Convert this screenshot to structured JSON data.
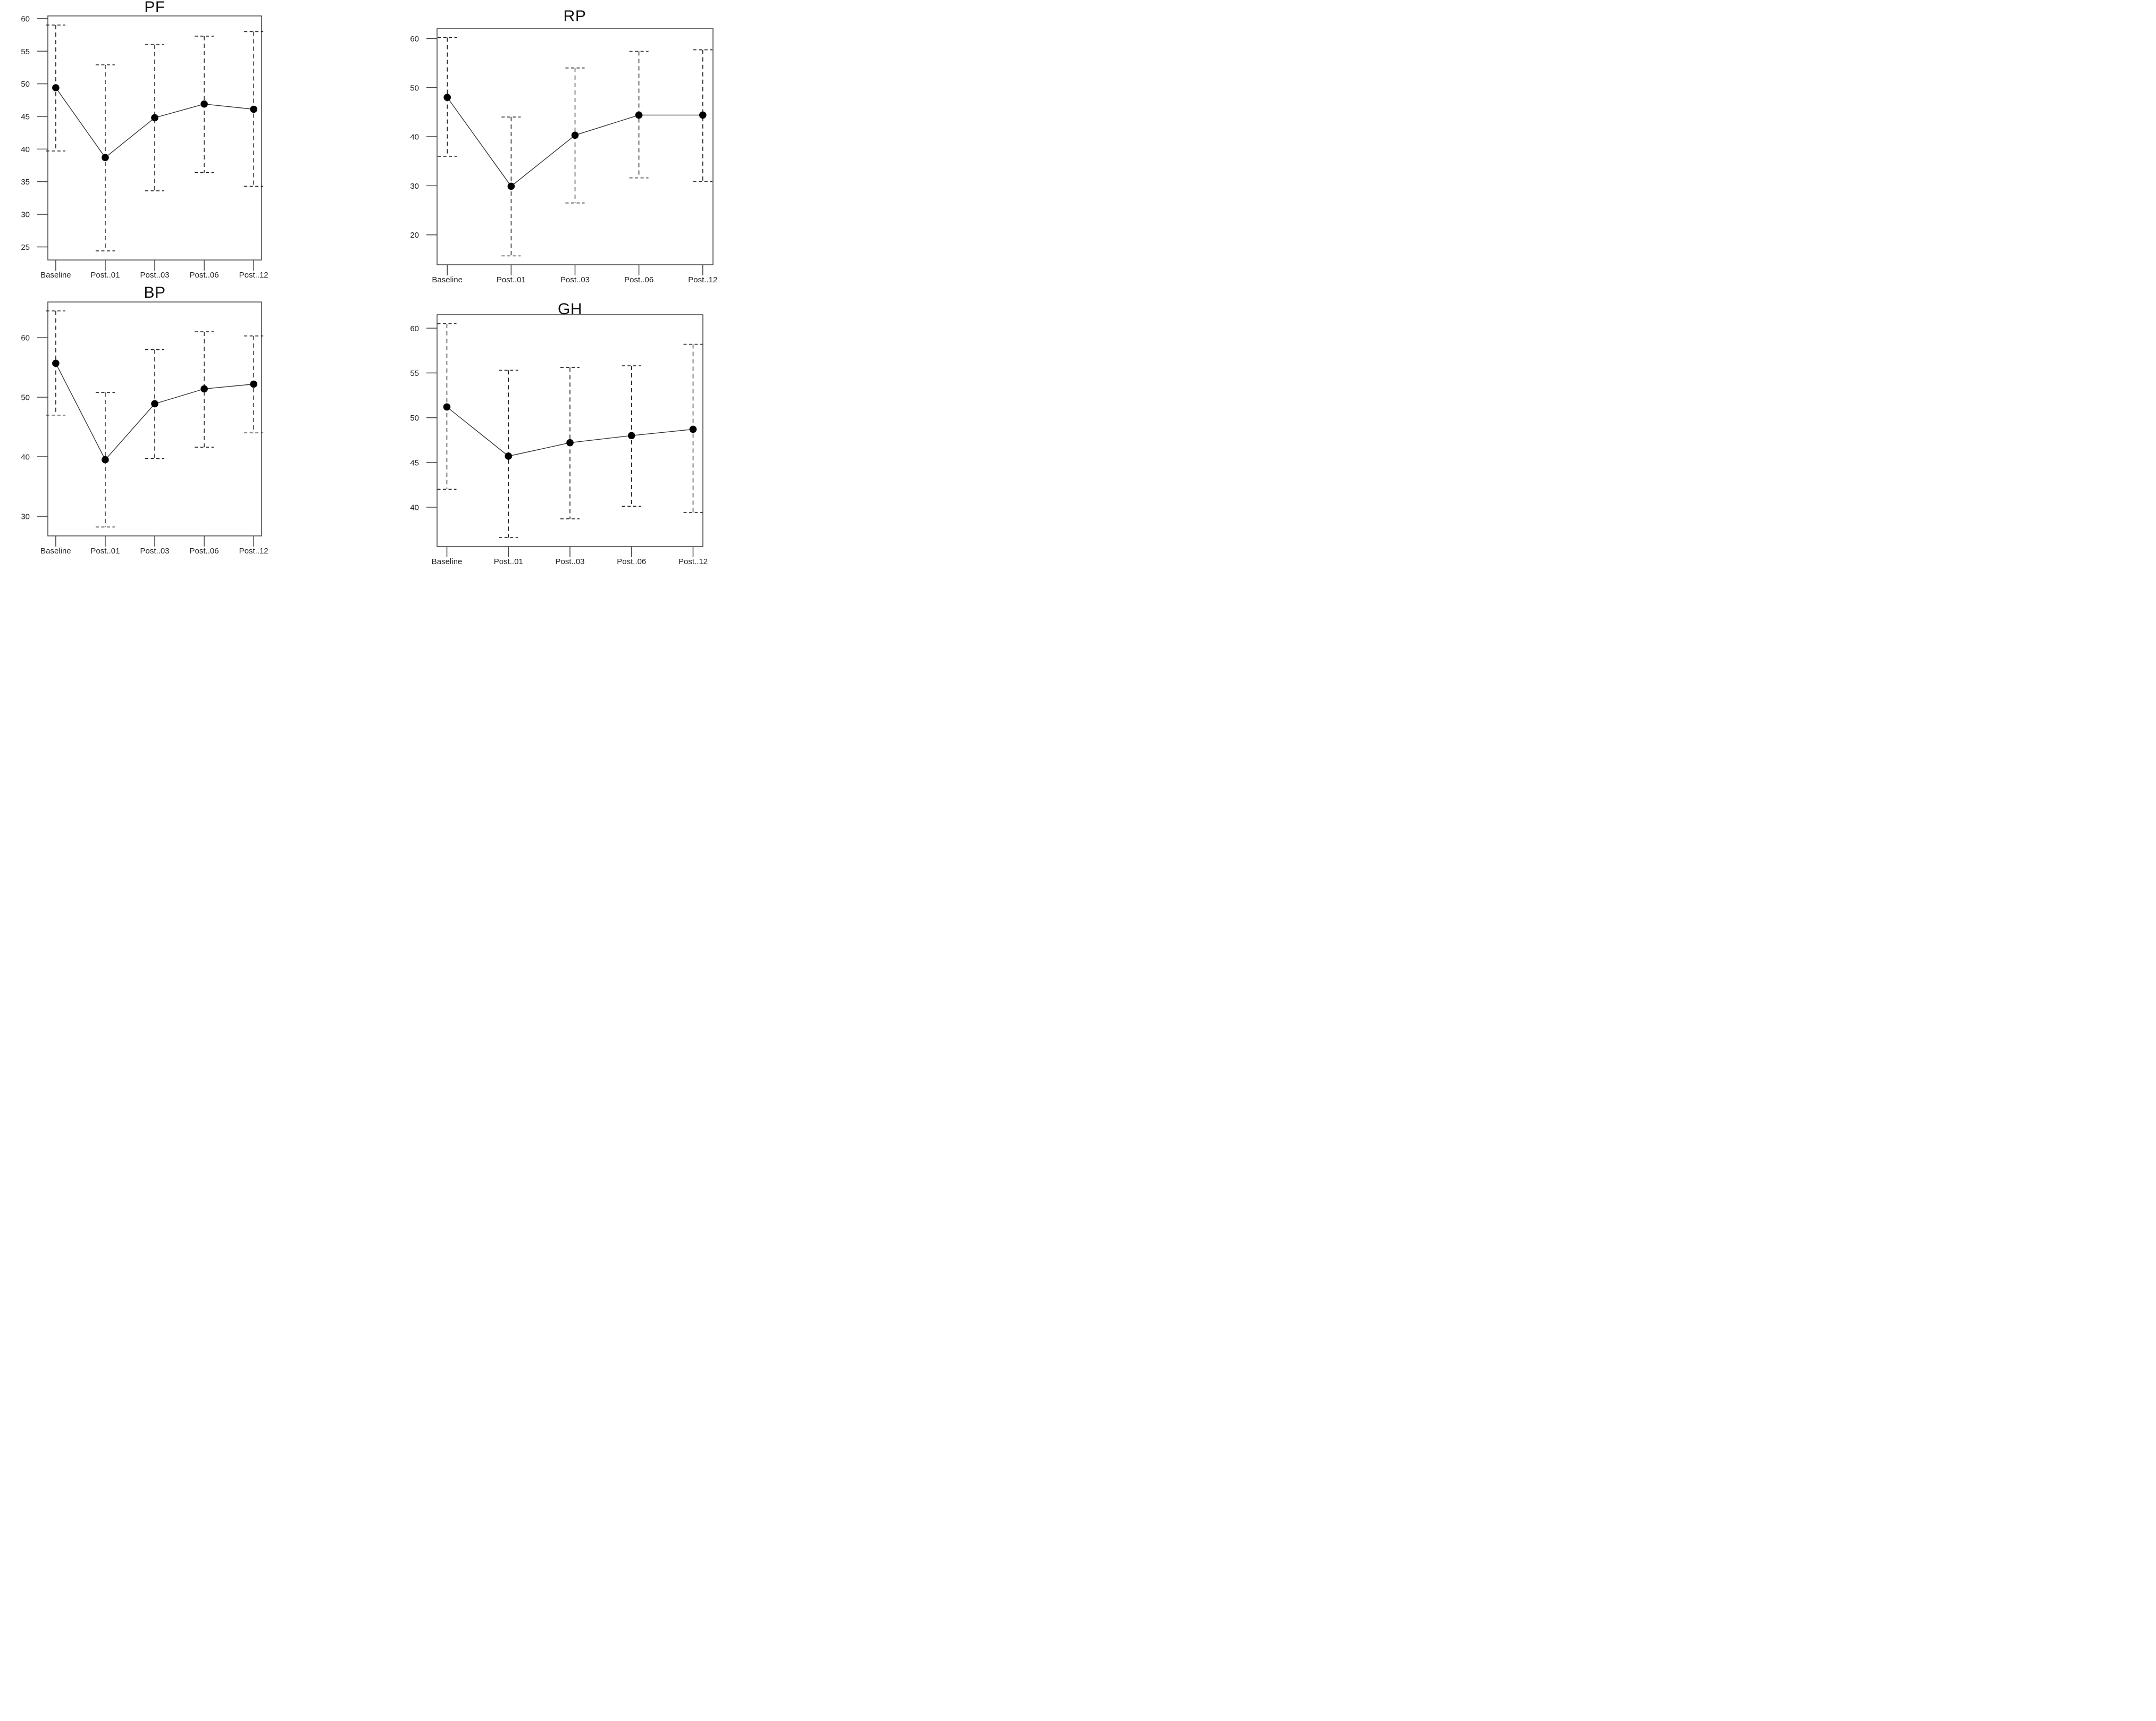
{
  "figure": {
    "panel_titles": [
      "PF",
      "RP",
      "BP",
      "GH"
    ]
  },
  "colors": {
    "point": "#000000",
    "mean_line": "#333333",
    "error_bar": "#1a1a1a",
    "axis": "#4a4a4a",
    "text": "#222222",
    "background": "#ffffff"
  },
  "chart_data": [
    {
      "type": "line",
      "title": "PF",
      "categories": [
        "Baseline",
        "Post..01",
        "Post..03",
        "Post..06",
        "Post..12"
      ],
      "series": [
        {
          "name": "mean",
          "values": [
            49.4,
            38.7,
            44.8,
            46.9,
            46.1
          ]
        },
        {
          "name": "ci_upper",
          "values": [
            59.0,
            52.9,
            56.0,
            57.3,
            58.0
          ]
        },
        {
          "name": "ci_lower",
          "values": [
            39.7,
            24.4,
            33.6,
            36.4,
            34.3
          ]
        }
      ],
      "yticks": [
        25,
        30,
        35,
        40,
        45,
        50,
        55,
        60
      ],
      "ylim": [
        23.0,
        60.4
      ],
      "marker": "filled-circle",
      "error_bars": "dashed",
      "grid": false,
      "legend": "none"
    },
    {
      "type": "line",
      "title": "RP",
      "categories": [
        "Baseline",
        "Post..01",
        "Post..03",
        "Post..06",
        "Post..12"
      ],
      "series": [
        {
          "name": "mean",
          "values": [
            48.0,
            29.9,
            40.3,
            44.4,
            44.4
          ]
        },
        {
          "name": "ci_upper",
          "values": [
            60.2,
            44.0,
            54.0,
            57.4,
            57.7
          ]
        },
        {
          "name": "ci_lower",
          "values": [
            36.0,
            15.7,
            26.5,
            31.6,
            30.9
          ]
        }
      ],
      "yticks": [
        20,
        30,
        40,
        50,
        60
      ],
      "ylim": [
        13.9,
        62.0
      ],
      "marker": "filled-circle",
      "error_bars": "dashed",
      "grid": false,
      "legend": "none"
    },
    {
      "type": "line",
      "title": "BP",
      "categories": [
        "Baseline",
        "Post..01",
        "Post..03",
        "Post..06",
        "Post..12"
      ],
      "series": [
        {
          "name": "mean",
          "values": [
            55.7,
            39.5,
            48.9,
            51.4,
            52.2
          ]
        },
        {
          "name": "ci_upper",
          "values": [
            64.5,
            50.8,
            58.0,
            61.0,
            60.3
          ]
        },
        {
          "name": "ci_lower",
          "values": [
            47.0,
            28.2,
            39.7,
            41.6,
            44.0
          ]
        }
      ],
      "yticks": [
        30,
        40,
        50,
        60
      ],
      "ylim": [
        26.7,
        66.0
      ],
      "marker": "filled-circle",
      "error_bars": "dashed",
      "grid": false,
      "legend": "none"
    },
    {
      "type": "line",
      "title": "GH",
      "categories": [
        "Baseline",
        "Post..01",
        "Post..03",
        "Post..06",
        "Post..12"
      ],
      "series": [
        {
          "name": "mean",
          "values": [
            51.2,
            45.7,
            47.2,
            48.0,
            48.7
          ]
        },
        {
          "name": "ci_upper",
          "values": [
            60.5,
            55.3,
            55.6,
            55.8,
            58.2
          ]
        },
        {
          "name": "ci_lower",
          "values": [
            42.0,
            36.6,
            38.7,
            40.1,
            39.4
          ]
        }
      ],
      "yticks": [
        40,
        45,
        50,
        55,
        60
      ],
      "ylim": [
        35.6,
        61.5
      ],
      "marker": "filled-circle",
      "error_bars": "dashed",
      "grid": false,
      "legend": "none"
    }
  ]
}
